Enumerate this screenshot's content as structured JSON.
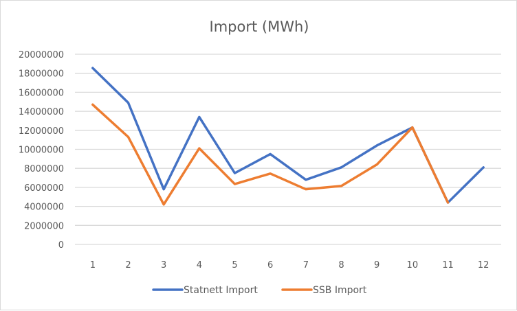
{
  "chart_data": {
    "type": "line",
    "title": "Import (MWh)",
    "xlabel": "",
    "ylabel": "",
    "categories": [
      "1",
      "2",
      "3",
      "4",
      "5",
      "6",
      "7",
      "8",
      "9",
      "10",
      "11",
      "12"
    ],
    "y_ticks": [
      "0",
      "2000000",
      "4000000",
      "6000000",
      "8000000",
      "10000000",
      "12000000",
      "14000000",
      "16000000",
      "18000000",
      "20000000"
    ],
    "ylim": [
      0,
      20000000
    ],
    "grid": true,
    "legend_position": "bottom",
    "series": [
      {
        "name": "Statnett Import",
        "color": "#4472C4",
        "values": [
          18550000,
          14900000,
          5800000,
          13400000,
          7500000,
          9500000,
          6800000,
          8100000,
          10400000,
          12300000,
          4400000,
          8100000
        ]
      },
      {
        "name": "SSB Import",
        "color": "#ED7D31",
        "values": [
          14700000,
          11300000,
          4200000,
          10100000,
          6350000,
          7450000,
          5800000,
          6150000,
          8400000,
          12300000,
          4400000,
          null
        ]
      }
    ]
  }
}
